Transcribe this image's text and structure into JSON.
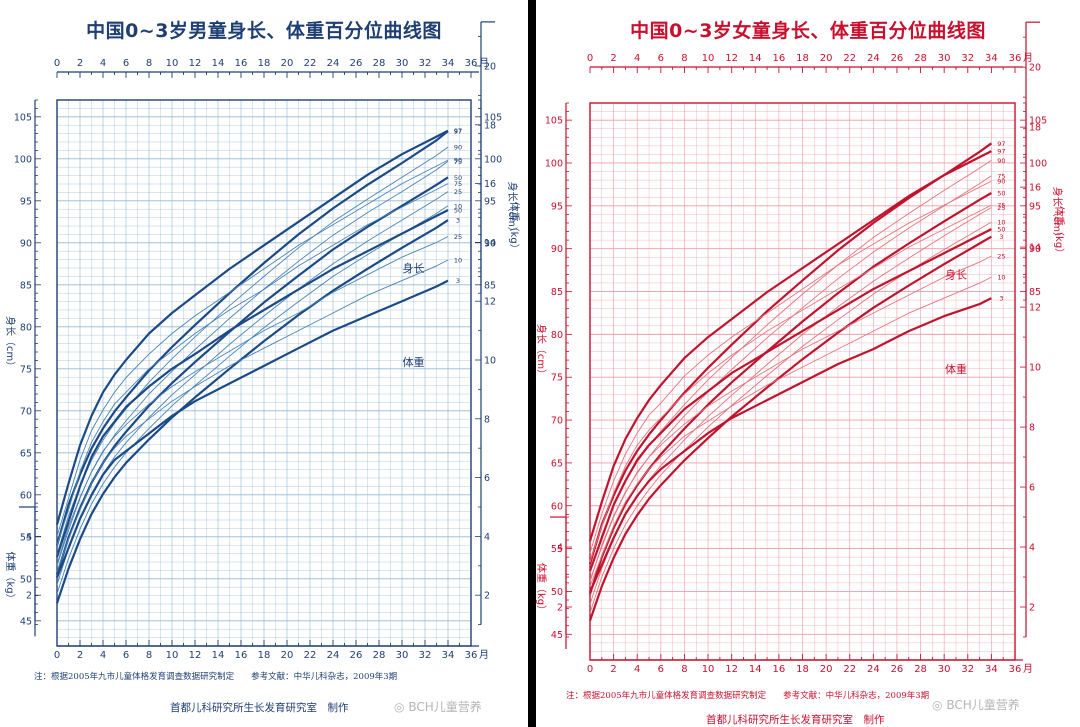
{
  "watermark": "BCH儿童营养",
  "chart_data": [
    {
      "id": "boy",
      "type": "line",
      "title": "中国0~3岁男童身长、体重百分位曲线图",
      "color": "#1f3f73",
      "curve_color": "#1c4a86",
      "light_color": "#4a83b4",
      "grid_color": "#93b9d6",
      "x_axis": {
        "unit_label": "月",
        "ticks": [
          0,
          2,
          4,
          6,
          8,
          10,
          12,
          14,
          16,
          18,
          20,
          22,
          24,
          26,
          28,
          30,
          32,
          34,
          36
        ],
        "range": [
          0,
          36
        ]
      },
      "length_axis": {
        "label": "身长（cm）",
        "ticks": [
          45,
          50,
          55,
          60,
          65,
          70,
          75,
          80,
          85,
          90,
          95,
          100,
          105
        ],
        "range": [
          42,
          107
        ],
        "left_extent": [
          45,
          107
        ],
        "right_extent": [
          84,
          107
        ]
      },
      "weight_axis": {
        "label": "体重（kg）",
        "ticks": [
          2,
          4,
          6,
          8,
          10,
          12,
          14,
          16,
          18,
          20
        ],
        "left_top_ticks": [
          2,
          4
        ],
        "right_extent": [
          1,
          21.5
        ]
      },
      "x": [
        0,
        1,
        2,
        3,
        4,
        5,
        6,
        8,
        10,
        12,
        15,
        18,
        21,
        24,
        27,
        30,
        33,
        34
      ],
      "length_percentiles": [
        {
          "name": "97",
          "values": [
            54.0,
            58.8,
            62.4,
            65.5,
            67.9,
            69.9,
            71.6,
            74.8,
            77.6,
            80.2,
            84.0,
            87.6,
            91.0,
            94.1,
            96.9,
            99.5,
            102.2,
            103.3
          ]
        },
        {
          "name": "90",
          "values": [
            52.9,
            57.5,
            61.1,
            64.1,
            66.5,
            68.5,
            70.2,
            73.4,
            76.2,
            78.8,
            82.5,
            86.0,
            89.4,
            92.5,
            95.2,
            97.8,
            100.4,
            101.4
          ]
        },
        {
          "name": "75",
          "values": [
            51.7,
            56.2,
            59.7,
            62.7,
            65.1,
            67.1,
            68.8,
            72.0,
            74.7,
            77.3,
            81.0,
            84.5,
            87.8,
            90.9,
            93.6,
            96.1,
            98.7,
            99.7
          ]
        },
        {
          "name": "50",
          "values": [
            50.5,
            54.9,
            58.4,
            61.4,
            63.8,
            65.8,
            67.5,
            70.6,
            73.3,
            75.8,
            79.4,
            82.9,
            86.1,
            89.2,
            91.9,
            94.4,
            96.9,
            97.8
          ]
        },
        {
          "name": "25",
          "values": [
            49.3,
            53.6,
            57.1,
            60.1,
            62.5,
            64.5,
            66.2,
            69.2,
            71.9,
            74.3,
            77.9,
            81.3,
            84.5,
            87.5,
            90.2,
            92.7,
            95.2,
            96.1
          ]
        },
        {
          "name": "10",
          "values": [
            48.2,
            52.4,
            55.9,
            58.9,
            61.3,
            63.3,
            65.0,
            67.9,
            70.6,
            73.0,
            76.5,
            79.9,
            83.0,
            86.0,
            88.6,
            91.1,
            93.5,
            94.4
          ]
        },
        {
          "name": "3",
          "values": [
            47.1,
            51.2,
            54.7,
            57.7,
            60.1,
            62.1,
            63.8,
            66.6,
            69.2,
            71.6,
            75.0,
            78.3,
            81.4,
            84.3,
            86.9,
            89.4,
            91.8,
            92.7
          ]
        }
      ],
      "weight_percentiles": [
        {
          "name": "97",
          "values": [
            4.4,
            5.8,
            7.1,
            8.1,
            8.9,
            9.5,
            10.0,
            10.9,
            11.6,
            12.2,
            13.1,
            13.9,
            14.7,
            15.5,
            16.3,
            17.0,
            17.6,
            17.8
          ]
        },
        {
          "name": "90",
          "values": [
            4.0,
            5.3,
            6.6,
            7.6,
            8.3,
            8.9,
            9.4,
            10.2,
            10.9,
            11.5,
            12.3,
            13.1,
            13.9,
            14.6,
            15.3,
            16.0,
            16.6,
            16.8
          ]
        },
        {
          "name": "75",
          "values": [
            3.7,
            4.9,
            6.2,
            7.2,
            7.9,
            8.5,
            8.9,
            9.7,
            10.3,
            10.9,
            11.7,
            12.4,
            13.2,
            13.9,
            14.6,
            15.2,
            15.8,
            16.0
          ]
        },
        {
          "name": "50",
          "values": [
            3.3,
            4.5,
            5.7,
            6.7,
            7.4,
            7.9,
            8.4,
            9.1,
            9.7,
            10.2,
            11.0,
            11.7,
            12.4,
            13.1,
            13.7,
            14.3,
            14.9,
            15.1
          ]
        },
        {
          "name": "25",
          "values": [
            3.0,
            4.2,
            5.3,
            6.2,
            6.9,
            7.4,
            7.8,
            8.5,
            9.1,
            9.6,
            10.3,
            11.0,
            11.6,
            12.3,
            12.9,
            13.5,
            14.0,
            14.2
          ]
        },
        {
          "name": "10",
          "values": [
            2.8,
            3.9,
            4.9,
            5.8,
            6.5,
            7.0,
            7.4,
            8.0,
            8.6,
            9.1,
            9.8,
            10.4,
            11.0,
            11.6,
            12.2,
            12.7,
            13.2,
            13.4
          ]
        },
        {
          "name": "3",
          "values": [
            2.6,
            3.6,
            4.6,
            5.4,
            6.1,
            6.6,
            6.9,
            7.5,
            8.1,
            8.6,
            9.2,
            9.8,
            10.4,
            11.0,
            11.5,
            12.0,
            12.5,
            12.7
          ]
        }
      ],
      "curve_labels": {
        "length": "身长",
        "weight": "体重"
      },
      "note": "注：根据2005年九市儿童体格发育调查数据研究制定　　参考文献：中华儿科杂志，2009年3期",
      "maker": "首都儿科研究所生长发育研究室　制作"
    },
    {
      "id": "girl",
      "type": "line",
      "title": "中国0~3岁女童身长、体重百分位曲线图",
      "color": "#c8102e",
      "curve_color": "#c0142e",
      "light_color": "#e2747f",
      "grid_color": "#ef9ba6",
      "x_axis": {
        "unit_label": "月",
        "ticks": [
          0,
          2,
          4,
          6,
          8,
          10,
          12,
          14,
          16,
          18,
          20,
          22,
          24,
          26,
          28,
          30,
          32,
          34,
          36
        ],
        "range": [
          0,
          36
        ]
      },
      "length_axis": {
        "label": "身长（cm）",
        "ticks": [
          45,
          50,
          55,
          60,
          65,
          70,
          75,
          80,
          85,
          90,
          95,
          100,
          105
        ],
        "range": [
          42,
          107
        ],
        "left_extent": [
          45,
          107
        ],
        "right_extent": [
          84,
          107
        ]
      },
      "weight_axis": {
        "label": "体重（kg）",
        "ticks": [
          2,
          4,
          6,
          8,
          10,
          12,
          14,
          16,
          18,
          20
        ],
        "left_top_ticks": [
          2,
          4
        ],
        "right_extent": [
          1,
          21.5
        ]
      },
      "x": [
        0,
        1,
        2,
        3,
        4,
        5,
        6,
        8,
        10,
        12,
        15,
        18,
        21,
        24,
        27,
        30,
        33,
        34
      ],
      "length_percentiles": [
        {
          "name": "97",
          "values": [
            53.2,
            57.8,
            61.2,
            64.1,
            66.4,
            68.3,
            70.0,
            73.2,
            76.1,
            78.8,
            82.7,
            86.3,
            89.8,
            93.0,
            95.9,
            98.6,
            101.3,
            102.3
          ]
        },
        {
          "name": "90",
          "values": [
            52.2,
            56.6,
            60.0,
            62.8,
            65.1,
            67.0,
            68.7,
            71.8,
            74.7,
            77.3,
            81.1,
            84.7,
            88.1,
            91.3,
            94.1,
            96.8,
            99.4,
            100.3
          ]
        },
        {
          "name": "75",
          "values": [
            51.1,
            55.4,
            58.8,
            61.6,
            63.8,
            65.7,
            67.4,
            70.5,
            73.3,
            75.9,
            79.6,
            83.1,
            86.5,
            89.6,
            92.4,
            95.0,
            97.6,
            98.5
          ]
        },
        {
          "name": "50",
          "values": [
            49.7,
            54.0,
            57.4,
            60.2,
            62.4,
            64.3,
            66.0,
            69.0,
            71.8,
            74.4,
            78.0,
            81.5,
            84.8,
            87.9,
            90.6,
            93.2,
            95.7,
            96.5
          ]
        },
        {
          "name": "25",
          "values": [
            48.5,
            52.7,
            56.1,
            58.9,
            61.1,
            63.0,
            64.7,
            67.7,
            70.4,
            72.9,
            76.5,
            80.0,
            83.2,
            86.2,
            88.9,
            91.5,
            94.0,
            94.8
          ]
        },
        {
          "name": "10",
          "values": [
            47.5,
            51.7,
            55.0,
            57.8,
            60.0,
            61.9,
            63.6,
            66.5,
            69.2,
            71.7,
            75.2,
            78.6,
            81.7,
            84.7,
            87.4,
            89.9,
            92.3,
            93.1
          ]
        },
        {
          "name": "3",
          "values": [
            46.6,
            50.6,
            53.9,
            56.7,
            58.9,
            60.8,
            62.4,
            65.3,
            67.9,
            70.4,
            73.8,
            77.1,
            80.2,
            83.1,
            85.7,
            88.2,
            90.6,
            91.4
          ]
        }
      ],
      "weight_percentiles": [
        {
          "name": "97",
          "values": [
            4.2,
            5.5,
            6.7,
            7.6,
            8.3,
            8.9,
            9.4,
            10.3,
            11.0,
            11.6,
            12.5,
            13.3,
            14.1,
            14.9,
            15.7,
            16.4,
            17.0,
            17.2
          ]
        },
        {
          "name": "90",
          "values": [
            3.8,
            5.1,
            6.2,
            7.1,
            7.8,
            8.4,
            8.8,
            9.7,
            10.4,
            11.0,
            11.8,
            12.6,
            13.4,
            14.1,
            14.8,
            15.4,
            16.0,
            16.2
          ]
        },
        {
          "name": "75",
          "values": [
            3.5,
            4.7,
            5.8,
            6.7,
            7.4,
            7.9,
            8.3,
            9.1,
            9.8,
            10.4,
            11.2,
            11.9,
            12.6,
            13.3,
            14.0,
            14.6,
            15.2,
            15.4
          ]
        },
        {
          "name": "50",
          "values": [
            3.2,
            4.3,
            5.4,
            6.2,
            6.9,
            7.4,
            7.8,
            8.6,
            9.2,
            9.8,
            10.5,
            11.2,
            11.9,
            12.6,
            13.2,
            13.8,
            14.4,
            14.6
          ]
        },
        {
          "name": "25",
          "values": [
            2.9,
            4.0,
            5.0,
            5.8,
            6.5,
            7.0,
            7.4,
            8.1,
            8.7,
            9.2,
            9.9,
            10.6,
            11.2,
            11.8,
            12.4,
            13.0,
            13.5,
            13.7
          ]
        },
        {
          "name": "10",
          "values": [
            2.7,
            3.7,
            4.7,
            5.5,
            6.1,
            6.6,
            7.0,
            7.7,
            8.2,
            8.7,
            9.4,
            10.0,
            10.6,
            11.2,
            11.8,
            12.3,
            12.8,
            13.0
          ]
        },
        {
          "name": "3",
          "values": [
            2.5,
            3.4,
            4.3,
            5.1,
            5.7,
            6.2,
            6.6,
            7.2,
            7.8,
            8.3,
            8.9,
            9.5,
            10.1,
            10.6,
            11.2,
            11.7,
            12.1,
            12.3
          ]
        }
      ],
      "curve_labels": {
        "length": "身长",
        "weight": "体重"
      },
      "note": "注：根据2005年九市儿童体格发育调查数据研究制定　　参考文献：中华儿科杂志，2009年3期",
      "maker": "首都儿科研究所生长发育研究室　制作"
    }
  ]
}
